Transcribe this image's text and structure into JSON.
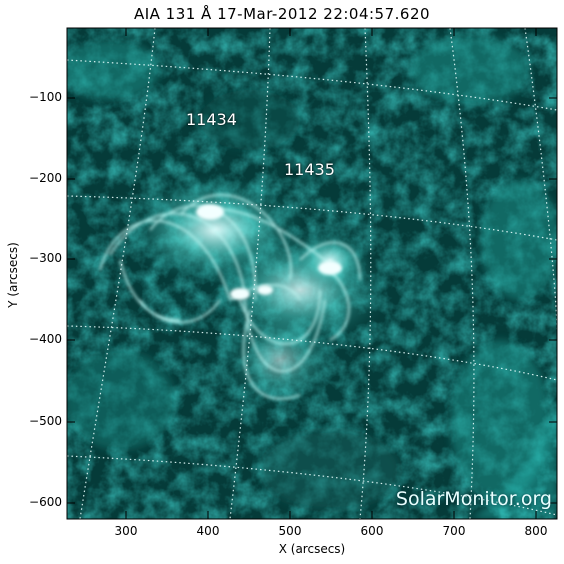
{
  "title": "AIA 131 Å 17-Mar-2012 22:04:57.620",
  "axes": {
    "xlabel": "X (arcsecs)",
    "ylabel": "Y (arcsecs)",
    "xticks": [
      "300",
      "400",
      "500",
      "600",
      "700",
      "800"
    ],
    "yticks": [
      "−100",
      "−200",
      "−300",
      "−400",
      "−500",
      "−600"
    ]
  },
  "active_regions": [
    {
      "label": "11434"
    },
    {
      "label": "11435"
    }
  ],
  "watermark": "SolarMonitor.org",
  "colors": {
    "plasma": "#2fd3cc",
    "dark": "#02302f"
  }
}
